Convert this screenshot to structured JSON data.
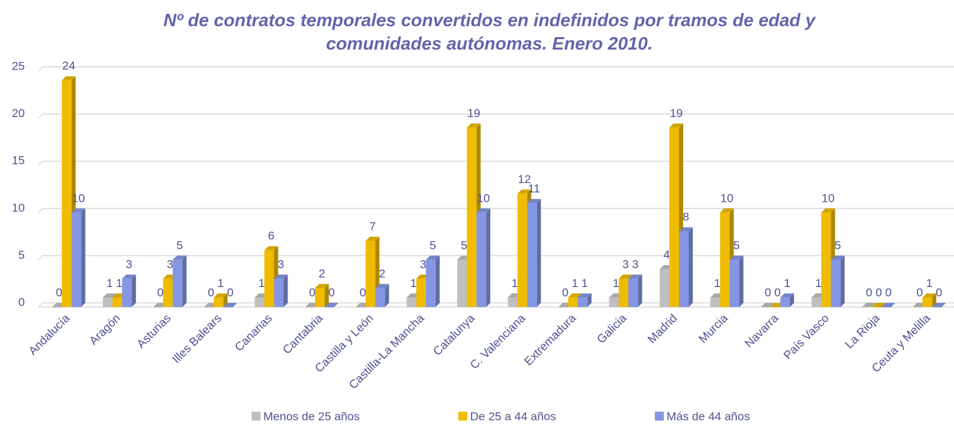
{
  "chart_data": {
    "type": "bar3d",
    "title": "Nº de contratos temporales convertidos en indefinidos por tramos de edad y comunidades autónomas. Enero 2010.",
    "categories": [
      "Andalucía",
      "Aragón",
      "Asturias",
      "Illes Balears",
      "Canarias",
      "Cantabria",
      "Castilla y León",
      "Castilla-La Mancha",
      "Catalunya",
      "C. Valenciana",
      "Extremadura",
      "Galicia",
      "Madrid",
      "Murcia",
      "Navarra",
      "País Vasco",
      "La Rioja",
      "Ceuta y Melilla"
    ],
    "series": [
      {
        "name": "Menos de 25 años",
        "color": "#bfbfbf",
        "values": [
          0,
          1,
          0,
          0,
          1,
          0,
          0,
          1,
          5,
          1,
          0,
          1,
          4,
          1,
          0,
          1,
          0,
          0
        ]
      },
      {
        "name": "De 25 a 44 años",
        "color": "#f0bc00",
        "values": [
          24,
          1,
          3,
          1,
          6,
          2,
          7,
          3,
          19,
          12,
          1,
          3,
          19,
          10,
          0,
          10,
          0,
          1
        ]
      },
      {
        "name": "Más de 44 años",
        "color": "#8597e2",
        "values": [
          10,
          3,
          5,
          0,
          3,
          0,
          2,
          5,
          10,
          11,
          1,
          3,
          8,
          5,
          1,
          5,
          0,
          0
        ]
      }
    ],
    "ylim": [
      0,
      25
    ],
    "yticks": [
      0,
      5,
      10,
      15,
      20,
      25
    ],
    "grid": true
  }
}
